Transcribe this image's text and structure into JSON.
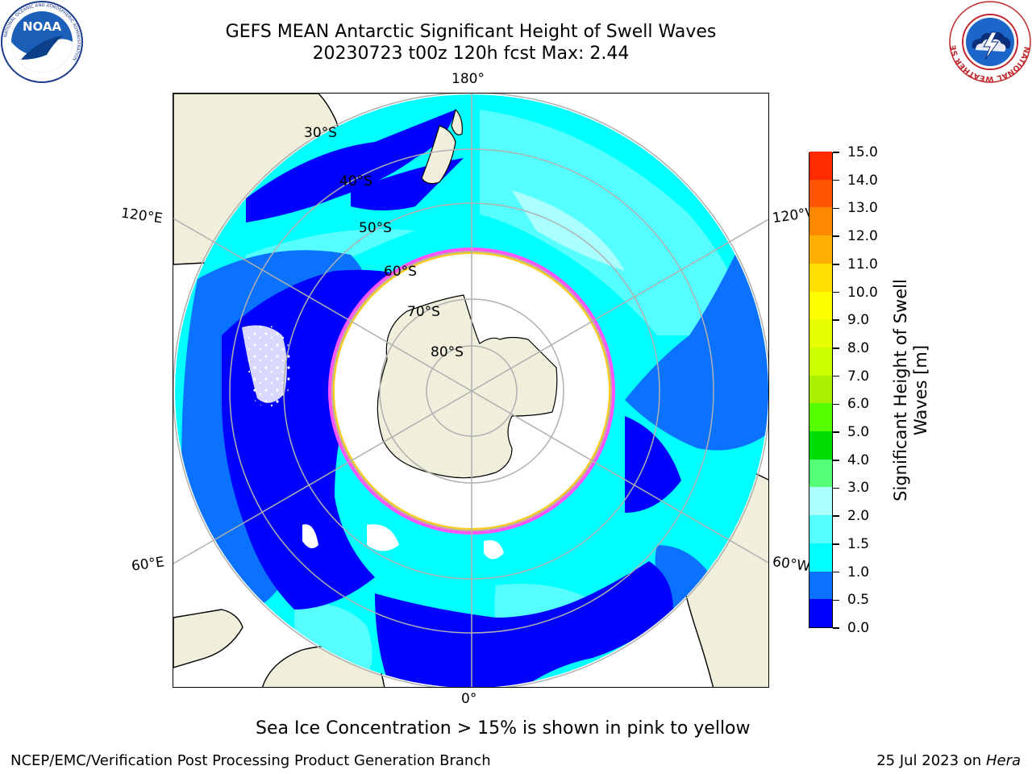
{
  "title": {
    "line1": "GEFS MEAN Antarctic Significant Height of Swell Waves",
    "line2": "20230723 t00z 120h fcst   Max: 2.44"
  },
  "logos": {
    "left": {
      "text": "NOAA",
      "ring_text": "NATIONAL OCEANIC AND ATMOSPHERIC ADMINISTRATION",
      "ring_text_bottom": "U.S. DEPARTMENT OF COMMERCE",
      "icon": "noaa-logo-icon"
    },
    "right": {
      "ring_text": "NATIONAL WEATHER SERVICE",
      "icon": "nws-logo-icon"
    }
  },
  "map": {
    "projection": "south-polar-stereographic",
    "lon_labels": {
      "top": "180°",
      "bottom": "0°",
      "upper_left": "120°E",
      "upper_right": "120°W",
      "lower_left": "60°E",
      "lower_right": "60°W"
    },
    "lat_labels": [
      "30°S",
      "40°S",
      "50°S",
      "60°S",
      "70°S",
      "80°S"
    ],
    "colors": {
      "land": "#efefdc",
      "ice_edge_pink": "#ff55ff",
      "ice_edge_yellow": "#ffcc22",
      "grid": "#b0b0b0"
    }
  },
  "colorbar": {
    "label_line1": "Significant Height of Swell",
    "label_line2": "Waves [m]",
    "ticks": [
      "0.0",
      "0.5",
      "1.0",
      "1.5",
      "2.0",
      "3.0",
      "4.0",
      "5.0",
      "6.0",
      "7.0",
      "8.0",
      "9.0",
      "10.0",
      "11.0",
      "12.0",
      "13.0",
      "14.0",
      "15.0"
    ],
    "colors": [
      "#0000ff",
      "#0a72ff",
      "#00ffff",
      "#55ffff",
      "#aaffff",
      "#55ff77",
      "#00dd00",
      "#55ff00",
      "#aaf000",
      "#ccff00",
      "#e5ff00",
      "#ffff00",
      "#ffe000",
      "#ffb000",
      "#ff8800",
      "#ff5500",
      "#ff2a00",
      "#ff0000"
    ]
  },
  "footnote": "Sea Ice Concentration > 15% is shown in pink to yellow",
  "credit": {
    "left": "NCEP/EMC/Verification Post Processing Product Generation Branch",
    "right_prefix": "25 Jul 2023 on ",
    "right_system": "Hera"
  }
}
